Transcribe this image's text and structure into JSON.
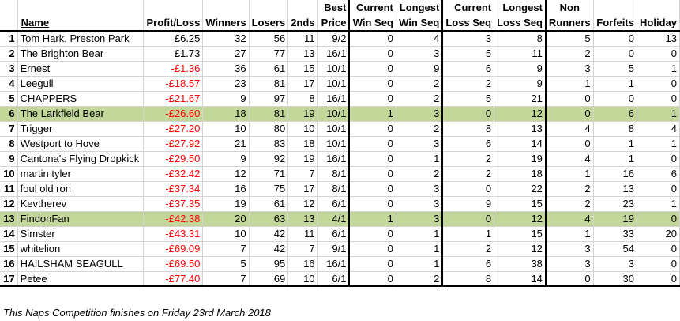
{
  "headers": {
    "pos": "",
    "name": "Name",
    "profit": "Profit/Loss",
    "winners": "Winners",
    "losers": "Losers",
    "seconds": "2nds",
    "best_price": [
      "Best",
      "Price"
    ],
    "current_win": [
      "Current",
      "Win Seq"
    ],
    "longest_win": [
      "Longest",
      "Win Seq"
    ],
    "current_loss": [
      "Current",
      "Loss Seq"
    ],
    "longest_loss": [
      "Longest",
      "Loss Seq"
    ],
    "non_runners": [
      "Non",
      "Runners"
    ],
    "forfeits": "Forfeits",
    "holiday": "Holiday"
  },
  "colors": {
    "highlight": "#c4d79b",
    "negative": "#ff0000"
  },
  "rows": [
    {
      "pos": "1",
      "name": "Tom Hark, Preston Park",
      "profit": "£6.25",
      "winners": "32",
      "losers": "56",
      "seconds": "11",
      "best": "9/2",
      "cw": "0",
      "lw": "4",
      "cl": "3",
      "ll": "8",
      "nr": "5",
      "ff": "0",
      "hol": "13",
      "neg": false,
      "hl": false
    },
    {
      "pos": "2",
      "name": "The Brighton Bear",
      "profit": "£1.73",
      "winners": "27",
      "losers": "77",
      "seconds": "13",
      "best": "16/1",
      "cw": "0",
      "lw": "3",
      "cl": "5",
      "ll": "11",
      "nr": "2",
      "ff": "0",
      "hol": "0",
      "neg": false,
      "hl": false
    },
    {
      "pos": "3",
      "name": "Ernest",
      "profit": "-£1.36",
      "winners": "36",
      "losers": "61",
      "seconds": "15",
      "best": "10/1",
      "cw": "0",
      "lw": "9",
      "cl": "6",
      "ll": "9",
      "nr": "3",
      "ff": "5",
      "hol": "1",
      "neg": true,
      "hl": false
    },
    {
      "pos": "4",
      "name": "Leegull",
      "profit": "-£18.57",
      "winners": "23",
      "losers": "81",
      "seconds": "17",
      "best": "10/1",
      "cw": "0",
      "lw": "2",
      "cl": "2",
      "ll": "9",
      "nr": "1",
      "ff": "1",
      "hol": "0",
      "neg": true,
      "hl": false
    },
    {
      "pos": "5",
      "name": "CHAPPERS",
      "profit": "-£21.67",
      "winners": "9",
      "losers": "97",
      "seconds": "8",
      "best": "16/1",
      "cw": "0",
      "lw": "2",
      "cl": "5",
      "ll": "21",
      "nr": "0",
      "ff": "0",
      "hol": "0",
      "neg": true,
      "hl": false
    },
    {
      "pos": "6",
      "name": "The Larkfield Bear",
      "profit": "-£26.60",
      "winners": "18",
      "losers": "81",
      "seconds": "19",
      "best": "10/1",
      "cw": "1",
      "lw": "3",
      "cl": "0",
      "ll": "12",
      "nr": "0",
      "ff": "6",
      "hol": "1",
      "neg": true,
      "hl": true
    },
    {
      "pos": "7",
      "name": "Trigger",
      "profit": "-£27.20",
      "winners": "10",
      "losers": "80",
      "seconds": "10",
      "best": "10/1",
      "cw": "0",
      "lw": "2",
      "cl": "8",
      "ll": "13",
      "nr": "4",
      "ff": "8",
      "hol": "4",
      "neg": true,
      "hl": false
    },
    {
      "pos": "8",
      "name": "Westport to Hove",
      "profit": "-£27.92",
      "winners": "21",
      "losers": "83",
      "seconds": "18",
      "best": "10/1",
      "cw": "0",
      "lw": "3",
      "cl": "6",
      "ll": "14",
      "nr": "0",
      "ff": "1",
      "hol": "1",
      "neg": true,
      "hl": false
    },
    {
      "pos": "9",
      "name": "Cantona's Flying Dropkick",
      "profit": "-£29.50",
      "winners": "9",
      "losers": "92",
      "seconds": "19",
      "best": "16/1",
      "cw": "0",
      "lw": "1",
      "cl": "2",
      "ll": "19",
      "nr": "4",
      "ff": "1",
      "hol": "0",
      "neg": true,
      "hl": false
    },
    {
      "pos": "10",
      "name": "martin tyler",
      "profit": "-£32.42",
      "winners": "12",
      "losers": "71",
      "seconds": "7",
      "best": "8/1",
      "cw": "0",
      "lw": "2",
      "cl": "2",
      "ll": "18",
      "nr": "1",
      "ff": "16",
      "hol": "6",
      "neg": true,
      "hl": false
    },
    {
      "pos": "11",
      "name": "foul old ron",
      "profit": "-£37.34",
      "winners": "16",
      "losers": "75",
      "seconds": "17",
      "best": "8/1",
      "cw": "0",
      "lw": "3",
      "cl": "0",
      "ll": "22",
      "nr": "2",
      "ff": "13",
      "hol": "0",
      "neg": true,
      "hl": false
    },
    {
      "pos": "12",
      "name": "Kevtherev",
      "profit": "-£37.35",
      "winners": "19",
      "losers": "61",
      "seconds": "12",
      "best": "6/1",
      "cw": "0",
      "lw": "3",
      "cl": "9",
      "ll": "15",
      "nr": "2",
      "ff": "23",
      "hol": "1",
      "neg": true,
      "hl": false
    },
    {
      "pos": "13",
      "name": "FindonFan",
      "profit": "-£42.38",
      "winners": "20",
      "losers": "63",
      "seconds": "13",
      "best": "4/1",
      "cw": "1",
      "lw": "3",
      "cl": "0",
      "ll": "12",
      "nr": "4",
      "ff": "19",
      "hol": "0",
      "neg": true,
      "hl": true
    },
    {
      "pos": "14",
      "name": "Simster",
      "profit": "-£43.31",
      "winners": "10",
      "losers": "42",
      "seconds": "11",
      "best": "6/1",
      "cw": "0",
      "lw": "1",
      "cl": "1",
      "ll": "15",
      "nr": "1",
      "ff": "33",
      "hol": "20",
      "neg": true,
      "hl": false
    },
    {
      "pos": "15",
      "name": "whitelion",
      "profit": "-£69.09",
      "winners": "7",
      "losers": "42",
      "seconds": "7",
      "best": "9/1",
      "cw": "0",
      "lw": "1",
      "cl": "2",
      "ll": "12",
      "nr": "3",
      "ff": "54",
      "hol": "0",
      "neg": true,
      "hl": false
    },
    {
      "pos": "16",
      "name": "HAILSHAM SEAGULL",
      "profit": "-£69.50",
      "winners": "5",
      "losers": "95",
      "seconds": "16",
      "best": "16/1",
      "cw": "0",
      "lw": "1",
      "cl": "6",
      "ll": "38",
      "nr": "3",
      "ff": "3",
      "hol": "0",
      "neg": true,
      "hl": false
    },
    {
      "pos": "17",
      "name": "Petee",
      "profit": "-£77.40",
      "winners": "7",
      "losers": "69",
      "seconds": "10",
      "best": "6/1",
      "cw": "0",
      "lw": "2",
      "cl": "8",
      "ll": "14",
      "nr": "0",
      "ff": "30",
      "hol": "0",
      "neg": true,
      "hl": false
    }
  ],
  "footer": "This Naps Competition finishes on Friday 23rd March 2018"
}
